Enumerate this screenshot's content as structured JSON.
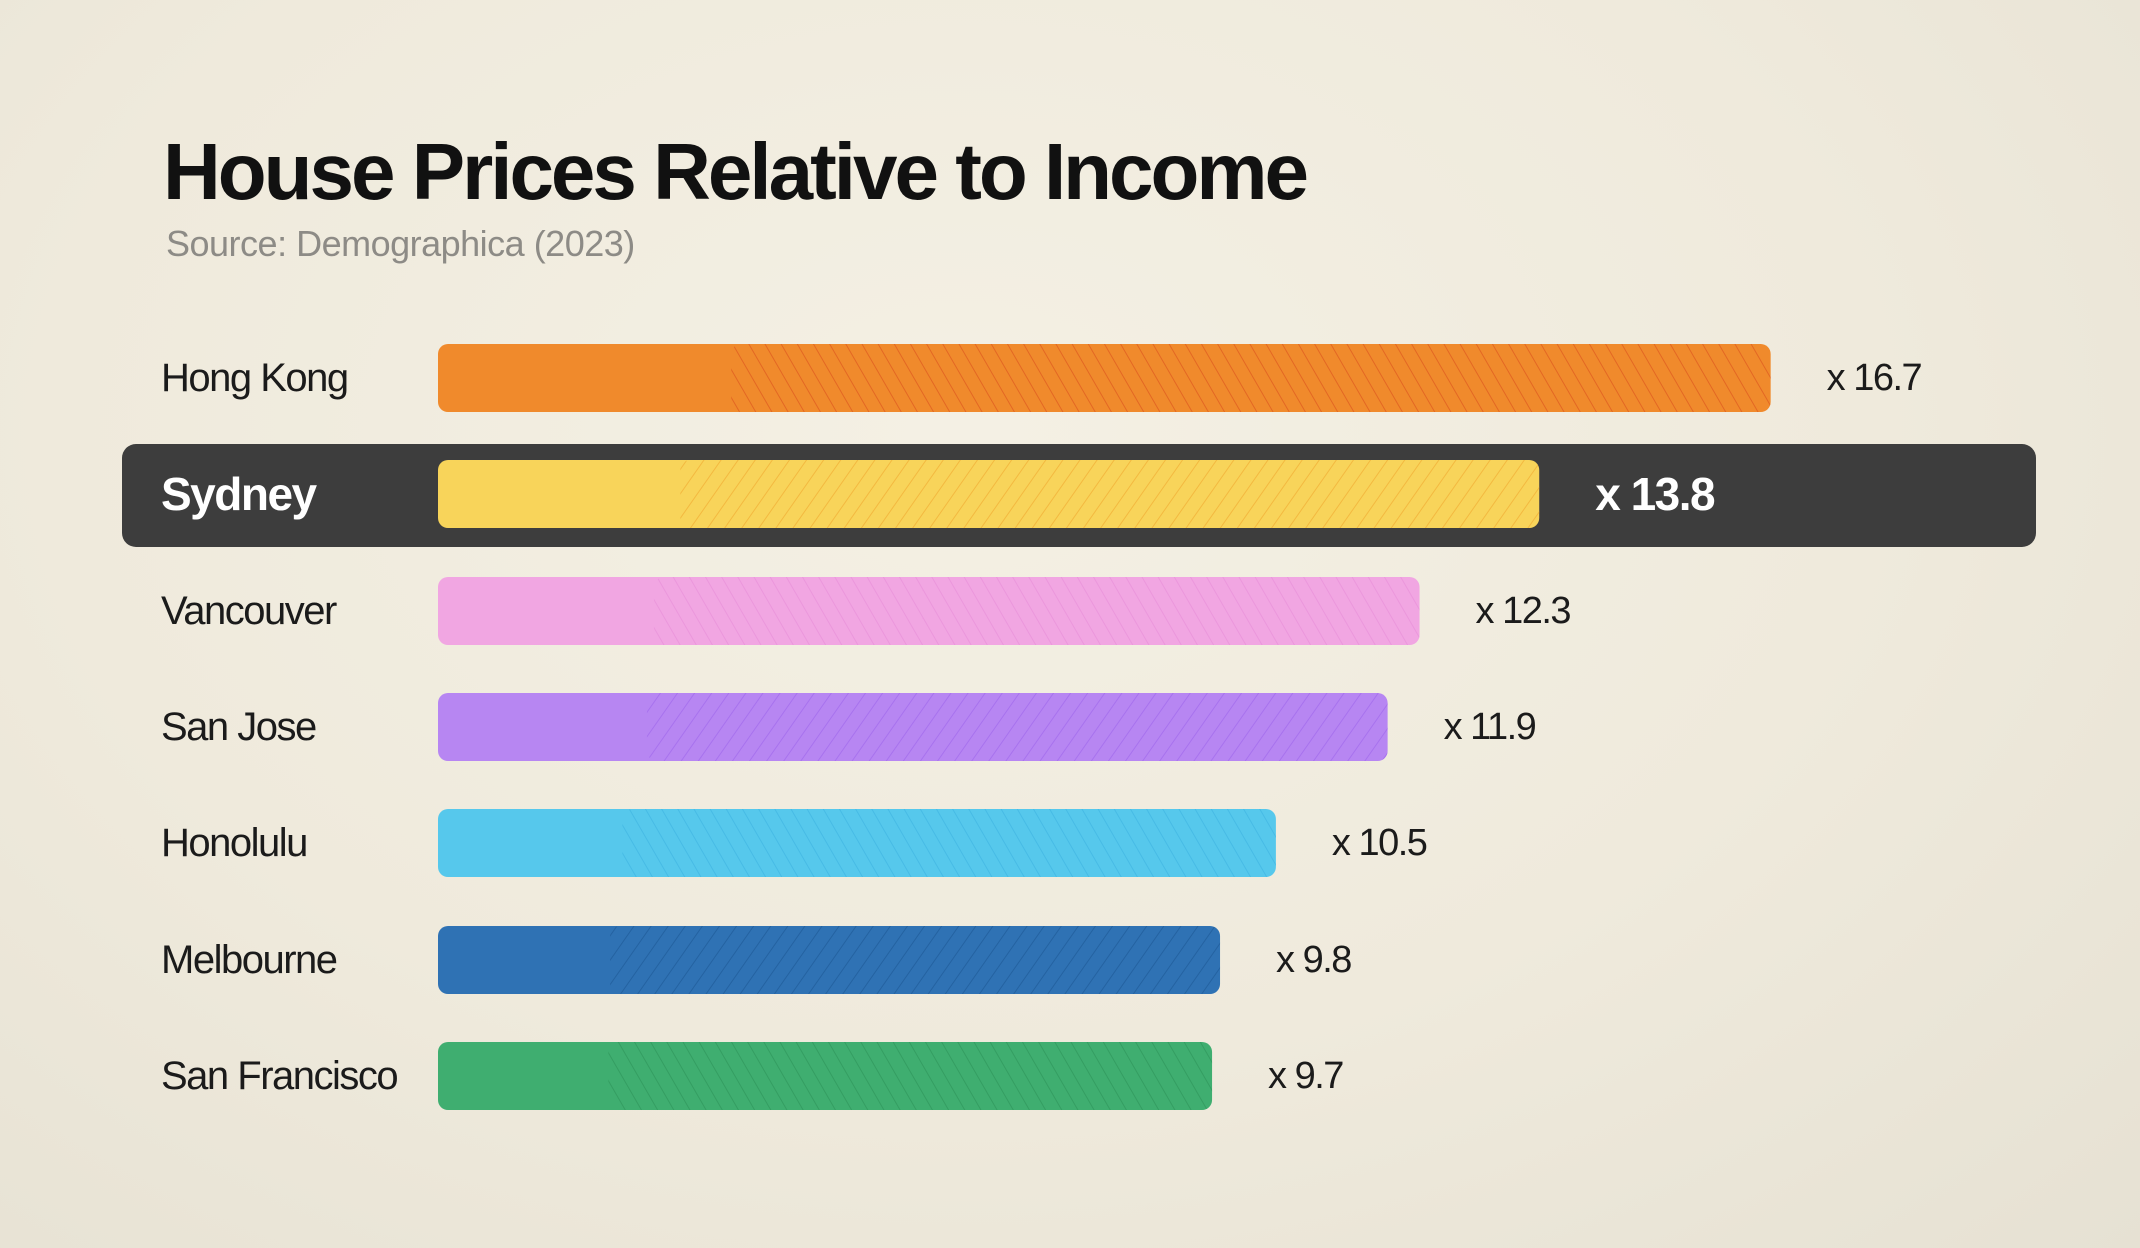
{
  "header": {
    "title": "House Prices Relative to Income",
    "source": "Source: Demographica (2023)"
  },
  "chart_data": {
    "type": "bar",
    "orientation": "horizontal",
    "title": "House Prices Relative to Income",
    "subtitle": "Source: Demographica (2023)",
    "categories": [
      "Hong Kong",
      "Sydney",
      "Vancouver",
      "San Jose",
      "Honolulu",
      "Melbourne",
      "San Francisco"
    ],
    "values": [
      16.7,
      13.8,
      12.3,
      11.9,
      10.5,
      9.8,
      9.7
    ],
    "value_labels": [
      "x 16.7",
      "x 13.8",
      "x 12.3",
      "x 11.9",
      "x 10.5",
      "x 9.8",
      "x 9.7"
    ],
    "colors": [
      "#f08a2c",
      "#f8d45a",
      "#f1a6e2",
      "#b786f2",
      "#56c8ec",
      "#2f72b4",
      "#3fae70"
    ],
    "pattern_colors": [
      "#d94a1c",
      "#eea12a",
      "#e58bd6",
      "#9a62ea",
      "#3bb0e0",
      "#1c5592",
      "#2c8f56"
    ],
    "highlight": "Sydney",
    "highlight_color": "#3d3d3d",
    "grid": false,
    "legend": "none"
  }
}
